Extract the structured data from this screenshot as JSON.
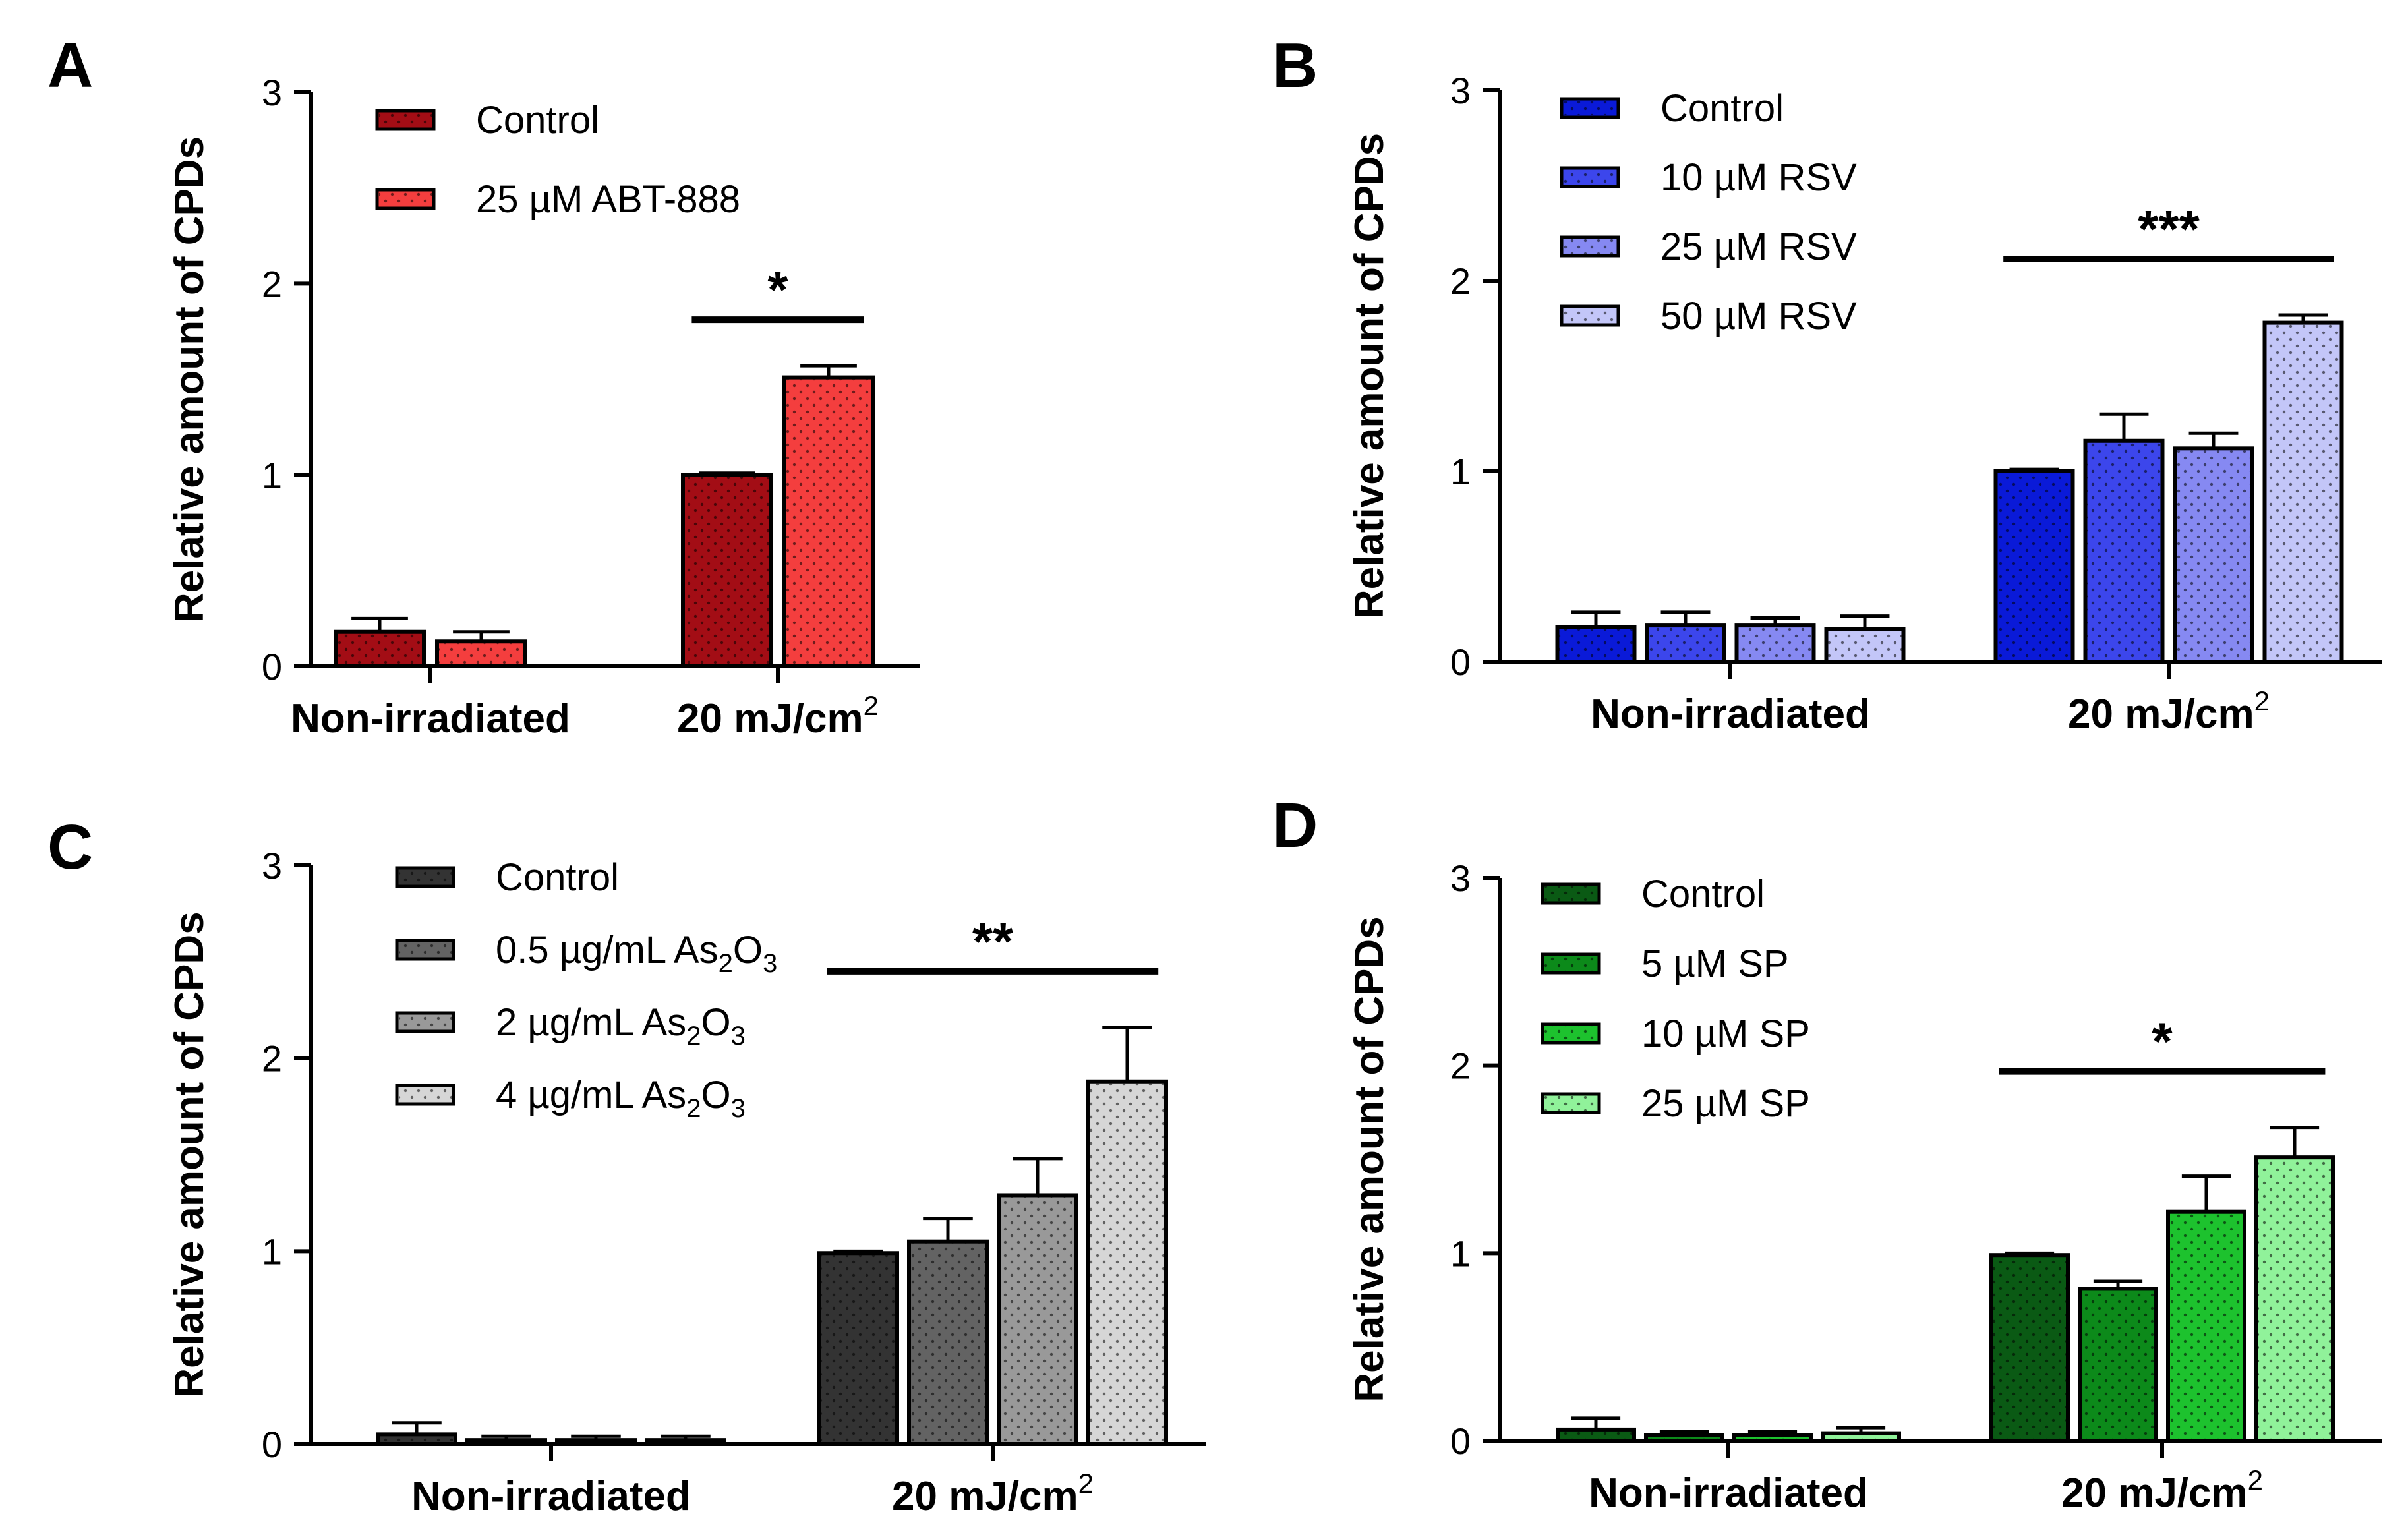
{
  "chart_data": [
    {
      "panel": "A",
      "type": "bar",
      "ylabel": "Relative amount of CPDs",
      "ylim": [
        0,
        3
      ],
      "yticks": [
        "0",
        "1",
        "2",
        "3"
      ],
      "categories": [
        "Non-irradiated",
        "20 mJ/cm"
      ],
      "category_superscript": [
        "",
        "2"
      ],
      "series": [
        {
          "name": "Control",
          "values": [
            0.18,
            1.0
          ],
          "errors": [
            0.07,
            0.01
          ],
          "color": "#a30d15"
        },
        {
          "name": "25 µM ABT-888",
          "values": [
            0.13,
            1.51
          ],
          "errors": [
            0.05,
            0.06
          ],
          "color": "#f43e3e"
        }
      ],
      "significance": {
        "label": "*",
        "category": 1,
        "from_series": 0,
        "to_series": 1
      }
    },
    {
      "panel": "B",
      "type": "bar",
      "ylabel": "Relative amount of CPDs",
      "ylim": [
        0,
        3
      ],
      "yticks": [
        "0",
        "1",
        "2",
        "3"
      ],
      "categories": [
        "Non-irradiated",
        "20 mJ/cm"
      ],
      "category_superscript": [
        "",
        "2"
      ],
      "series": [
        {
          "name": "Control",
          "values": [
            0.18,
            1.0
          ],
          "errors": [
            0.08,
            0.01
          ],
          "color": "#0a1ad8"
        },
        {
          "name": "10 µM RSV",
          "values": [
            0.19,
            1.16
          ],
          "errors": [
            0.07,
            0.14
          ],
          "color": "#3c46ec"
        },
        {
          "name": "25 µM RSV",
          "values": [
            0.19,
            1.12
          ],
          "errors": [
            0.04,
            0.08
          ],
          "color": "#8689f2"
        },
        {
          "name": "50 µM RSV",
          "values": [
            0.17,
            1.78
          ],
          "errors": [
            0.07,
            0.04
          ],
          "color": "#c3c6f8"
        }
      ],
      "significance": {
        "label": "***",
        "category": 1,
        "from_series": 0,
        "to_series": 3
      }
    },
    {
      "panel": "C",
      "type": "bar",
      "ylabel": "Relative amount of CPDs",
      "ylim": [
        0,
        3
      ],
      "yticks": [
        "0",
        "1",
        "2",
        "3"
      ],
      "categories": [
        "Non-irradiated",
        "20 mJ/cm"
      ],
      "category_superscript": [
        "",
        "2"
      ],
      "series": [
        {
          "name": "Control",
          "values": [
            0.05,
            0.99
          ],
          "errors": [
            0.06,
            0.01
          ],
          "color": "#333333"
        },
        {
          "name": "0.5 µg/mL As",
          "values": [
            0.02,
            1.05
          ],
          "errors": [
            0.02,
            0.12
          ],
          "color": "#636363"
        },
        {
          "name": "2 µg/mL As",
          "values": [
            0.02,
            1.29
          ],
          "errors": [
            0.02,
            0.19
          ],
          "color": "#999999"
        },
        {
          "name": "4 µg/mL As",
          "values": [
            0.02,
            1.88
          ],
          "errors": [
            0.02,
            0.28
          ],
          "color": "#d6d6d6"
        }
      ],
      "legend_chemical": {
        "sub1": "2",
        "mid": "O",
        "sub2": "3"
      },
      "significance": {
        "label": "**",
        "category": 1,
        "from_series": 0,
        "to_series": 3
      }
    },
    {
      "panel": "D",
      "type": "bar",
      "ylabel": "Relative amount of CPDs",
      "ylim": [
        0,
        3
      ],
      "yticks": [
        "0",
        "1",
        "2",
        "3"
      ],
      "categories": [
        "Non-irradiated",
        "20 mJ/cm"
      ],
      "category_superscript": [
        "",
        "2"
      ],
      "series": [
        {
          "name": "Control",
          "values": [
            0.06,
            0.99
          ],
          "errors": [
            0.06,
            0.01
          ],
          "color": "#0a5a14"
        },
        {
          "name": "5 µM SP",
          "values": [
            0.03,
            0.81
          ],
          "errors": [
            0.02,
            0.04
          ],
          "color": "#0c8a1a"
        },
        {
          "name": "10 µM SP",
          "values": [
            0.03,
            1.22
          ],
          "errors": [
            0.02,
            0.19
          ],
          "color": "#1dc22e"
        },
        {
          "name": "25 µM SP",
          "values": [
            0.04,
            1.51
          ],
          "errors": [
            0.03,
            0.16
          ],
          "color": "#90f29a"
        }
      ],
      "significance": {
        "label": "*",
        "category": 1,
        "from_series": 0,
        "to_series": 3
      }
    }
  ]
}
